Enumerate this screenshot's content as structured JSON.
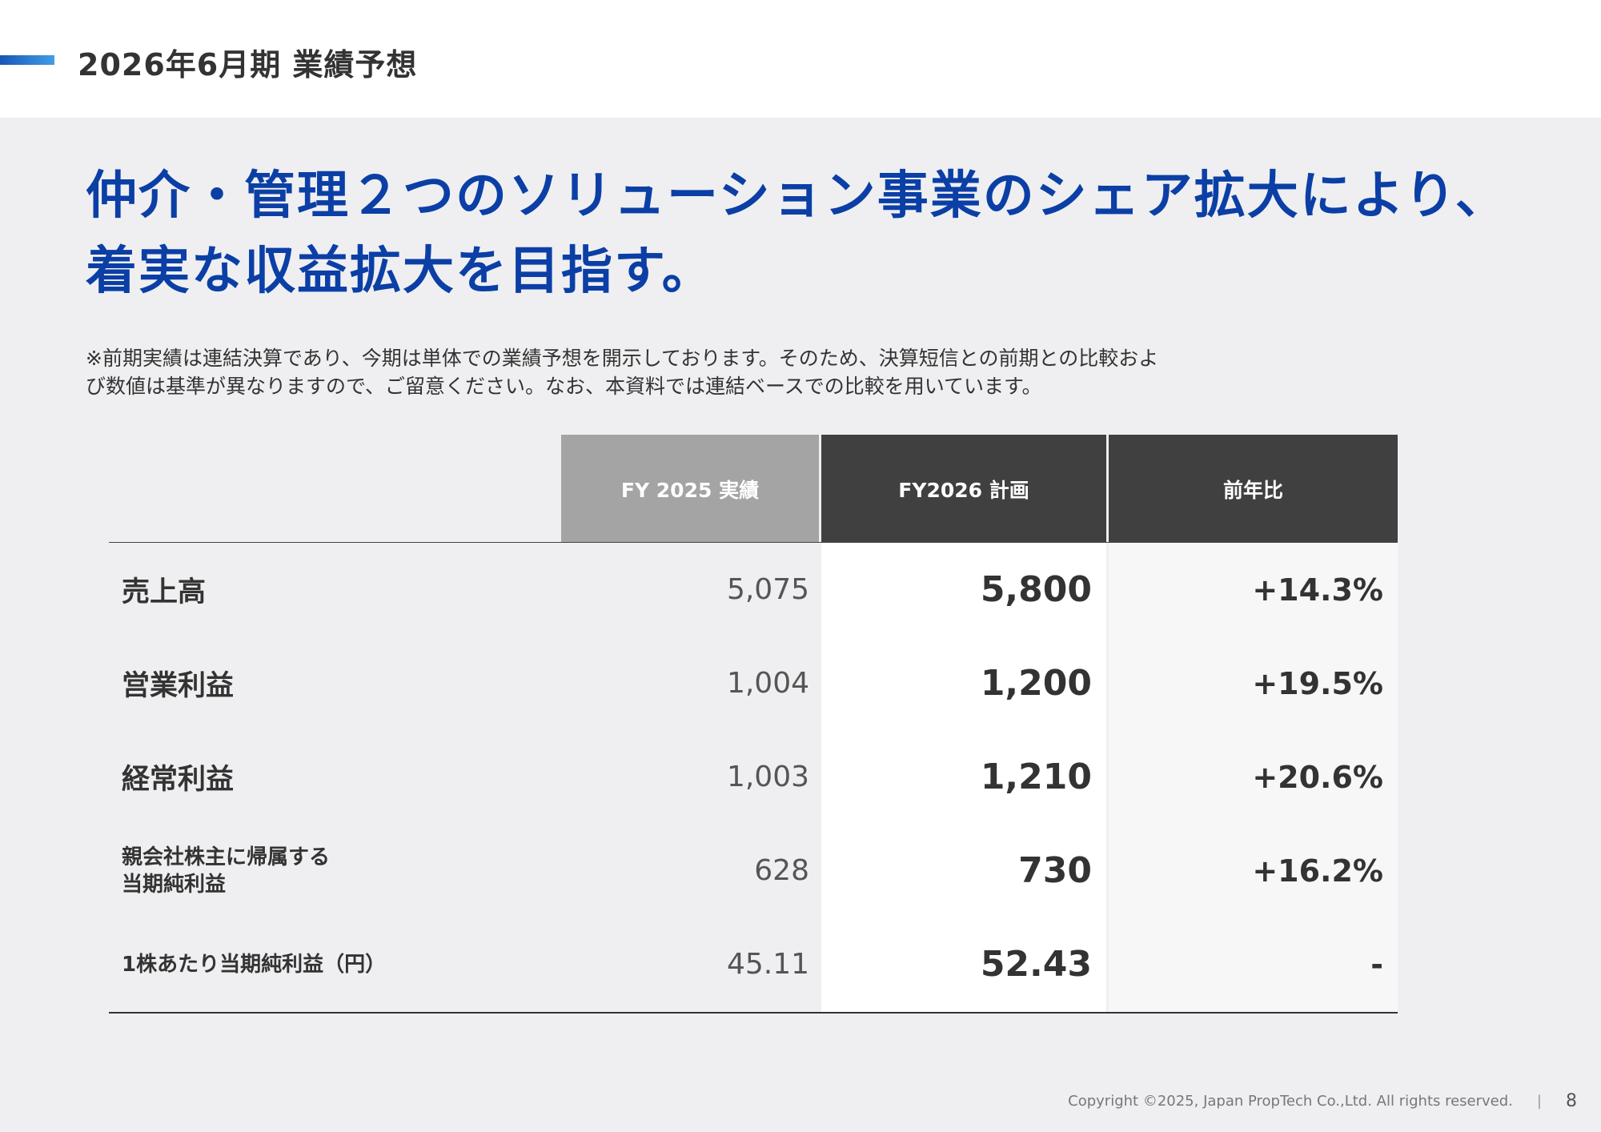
{
  "header": {
    "title": "2026年6月期 業績予想"
  },
  "headline": {
    "line1": "仲介・管理２つのソリューション事業のシェア拡大により、",
    "line2": "着実な収益拡大を目指す。"
  },
  "note": {
    "line1": "※前期実績は連結決算であり、今期は単体での業績予想を開示しております。そのため、決算短信との前期との比較およ",
    "line2": "び数値は基準が異なりますので、ご留意ください。なお、本資料では連結ベースでの比較を用いています。"
  },
  "table": {
    "headers": [
      "FY 2025 実績",
      "FY2026 計画",
      "前年比"
    ],
    "rows": [
      {
        "label": "売上高",
        "fy2025": "5,075",
        "fy2026": "5,800",
        "yoy": "+14.3%"
      },
      {
        "label": "営業利益",
        "fy2025": "1,004",
        "fy2026": "1,200",
        "yoy": "+19.5%"
      },
      {
        "label": "経常利益",
        "fy2025": "1,003",
        "fy2026": "1,210",
        "yoy": "+20.6%"
      },
      {
        "label_line1": "親会社株主に帰属する",
        "label_line2": "当期純利益",
        "fy2025": "628",
        "fy2026": "730",
        "yoy": "+16.2%"
      },
      {
        "label": "1株あたり当期純利益（円）",
        "fy2025": "45.11",
        "fy2026": "52.43",
        "yoy": "-"
      }
    ]
  },
  "footer": {
    "copyright": "Copyright ©2025, Japan PropTech Co.,Ltd. All rights reserved.",
    "separator": "|",
    "page_number": "8"
  },
  "colors": {
    "accent_blue": "#0b3fa6",
    "header_gray": "#a4a4a4",
    "header_dark": "#404040",
    "background": "#efeff1"
  }
}
